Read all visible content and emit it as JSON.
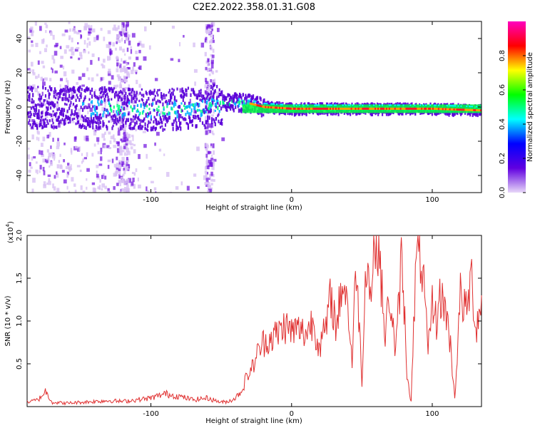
{
  "figure_title": "C2E2.2022.358.01.31.G08",
  "chart_data": [
    {
      "type": "heatmap",
      "xlabel": "Height of straight line (km)",
      "ylabel": "Frequency (Hz)",
      "xlim": [
        -188,
        135
      ],
      "ylim": [
        -50,
        50
      ],
      "x_ticks": [
        -100,
        0,
        100
      ],
      "y_ticks": [
        -40,
        -20,
        0,
        20,
        40
      ],
      "x_tick_labels": [
        "-100",
        "0",
        "100"
      ],
      "y_tick_labels": [
        "-40",
        "-20",
        "0",
        "20",
        "40"
      ],
      "colorbar": {
        "label": "Normalized spectral amplitude",
        "range": [
          0,
          1
        ],
        "ticks": [
          0.0,
          0.2,
          0.4,
          0.6,
          0.8
        ],
        "tick_labels": [
          "0.0",
          "0.2",
          "0.4",
          "0.6",
          "0.8"
        ],
        "colors": [
          "#e8d8f8",
          "#6000e0",
          "#0000ff",
          "#00ffff",
          "#00ff00",
          "#ffff00",
          "#ff0000",
          "#ff00c0"
        ]
      },
      "ridge": [
        {
          "x": -188,
          "f": 0
        },
        {
          "x": -150,
          "f": 0
        },
        {
          "x": -120,
          "f": -1
        },
        {
          "x": -100,
          "f": -2
        },
        {
          "x": -80,
          "f": -1
        },
        {
          "x": -60,
          "f": 0
        },
        {
          "x": -50,
          "f": 2
        },
        {
          "x": -40,
          "f": 3
        },
        {
          "x": -30,
          "f": 2
        },
        {
          "x": -20,
          "f": 0
        },
        {
          "x": 0,
          "f": -1
        },
        {
          "x": 50,
          "f": -1
        },
        {
          "x": 100,
          "f": -1
        },
        {
          "x": 135,
          "f": -2
        }
      ]
    },
    {
      "type": "line",
      "xlabel": "Height of straight line (km)",
      "ylabel": "SNR (10 * v/v)",
      "y_multiplier": "(x10",
      "y_multiplier_exp": "4",
      "y_multiplier_close": ")",
      "xlim": [
        -188,
        135
      ],
      "ylim": [
        0,
        2.0
      ],
      "x_ticks": [
        -100,
        0,
        100
      ],
      "y_ticks": [
        0.5,
        1.0,
        1.5,
        2.0
      ],
      "x_tick_labels": [
        "-100",
        "0",
        "100"
      ],
      "y_tick_labels": [
        "0.5",
        "1.0",
        "1.5",
        "2.0"
      ],
      "series": [
        {
          "color": "#e03030",
          "x": [
            -188,
            -180,
            -175,
            -170,
            -160,
            -150,
            -140,
            -130,
            -120,
            -110,
            -100,
            -90,
            -80,
            -70,
            -60,
            -50,
            -45,
            -40,
            -35,
            -32,
            -28,
            -25,
            -20,
            -15,
            -10,
            -5,
            0,
            5,
            10,
            15,
            20,
            25,
            28,
            32,
            36,
            40,
            43,
            46,
            50,
            53,
            56,
            59,
            62,
            66,
            70,
            74,
            78,
            80,
            82,
            85,
            88,
            91,
            94,
            97,
            100,
            103,
            106,
            110,
            113,
            116,
            120,
            124,
            128,
            131,
            135
          ],
          "y": [
            0.05,
            0.08,
            0.18,
            0.05,
            0.04,
            0.05,
            0.06,
            0.07,
            0.06,
            0.08,
            0.1,
            0.15,
            0.12,
            0.08,
            0.1,
            0.05,
            0.06,
            0.1,
            0.2,
            0.35,
            0.45,
            0.6,
            0.75,
            0.8,
            0.85,
            0.95,
            0.88,
            0.9,
            0.85,
            1.0,
            0.7,
            0.95,
            1.3,
            0.9,
            1.5,
            1.2,
            0.5,
            1.7,
            0.3,
            1.8,
            1.3,
            1.9,
            2.0,
            0.8,
            1.3,
            0.6,
            1.7,
            1.2,
            0.4,
            0.05,
            1.5,
            1.9,
            1.4,
            0.6,
            1.2,
            1.0,
            1.3,
            1.1,
            0.7,
            0.1,
            1.3,
            1.1,
            1.5,
            0.9,
            1.3
          ]
        }
      ]
    }
  ]
}
